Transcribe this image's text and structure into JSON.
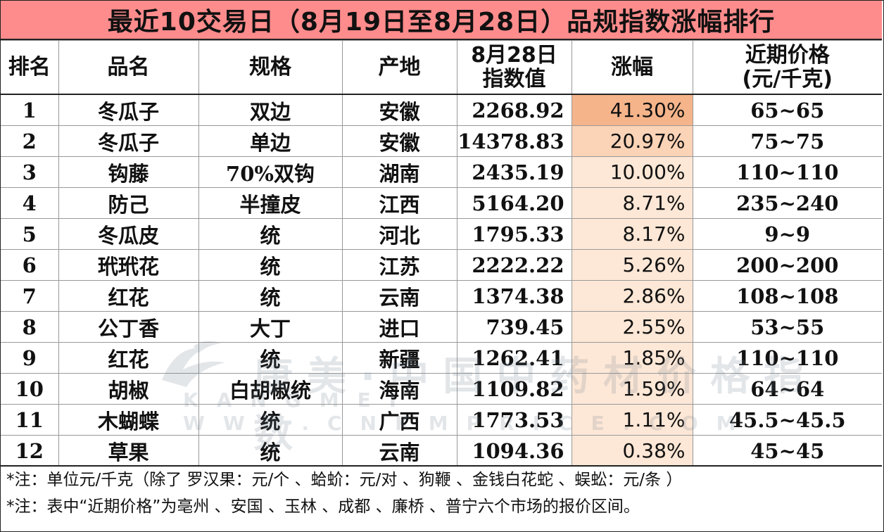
{
  "title": "最近10交易日（8月19日至8月28日）品规指数涨幅排行",
  "colors": {
    "title_bg": "#ff8c8c",
    "rise_high": "#f6b48a",
    "rise_mid": "#fbd3b6",
    "rise_low": "#fde7d6"
  },
  "headers": {
    "rank": "排名",
    "name": "品名",
    "spec": "规格",
    "origin": "产地",
    "index_line1": "8月28日",
    "index_line2": "指数值",
    "rise": "涨幅",
    "price_line1": "近期价格",
    "price_line2": "(元/千克)"
  },
  "rows": [
    {
      "rank": "1",
      "name": "冬瓜子",
      "spec": "双边",
      "origin": "安徽",
      "index": "2268.92",
      "rise": "41.30%",
      "price": "65~65",
      "rise_level": "high"
    },
    {
      "rank": "2",
      "name": "冬瓜子",
      "spec": "单边",
      "origin": "安徽",
      "index": "14378.83",
      "rise": "20.97%",
      "price": "75~75",
      "rise_level": "mid"
    },
    {
      "rank": "3",
      "name": "钩藤",
      "spec": "70%双钩",
      "origin": "湖南",
      "index": "2435.19",
      "rise": "10.00%",
      "price": "110~110",
      "rise_level": "low"
    },
    {
      "rank": "4",
      "name": "防己",
      "spec": "半撞皮",
      "origin": "江西",
      "index": "5164.20",
      "rise": "8.71%",
      "price": "235~240",
      "rise_level": "low"
    },
    {
      "rank": "5",
      "name": "冬瓜皮",
      "spec": "统",
      "origin": "河北",
      "index": "1795.33",
      "rise": "8.17%",
      "price": "9~9",
      "rise_level": "low"
    },
    {
      "rank": "6",
      "name": "玳玳花",
      "spec": "统",
      "origin": "江苏",
      "index": "2222.22",
      "rise": "5.26%",
      "price": "200~200",
      "rise_level": "low"
    },
    {
      "rank": "7",
      "name": "红花",
      "spec": "统",
      "origin": "云南",
      "index": "1374.38",
      "rise": "2.86%",
      "price": "108~108",
      "rise_level": "low"
    },
    {
      "rank": "8",
      "name": "公丁香",
      "spec": "大丁",
      "origin": "进口",
      "index": "739.45",
      "rise": "2.55%",
      "price": "53~55",
      "rise_level": "low"
    },
    {
      "rank": "9",
      "name": "红花",
      "spec": "统",
      "origin": "新疆",
      "index": "1262.41",
      "rise": "1.85%",
      "price": "110~110",
      "rise_level": "low"
    },
    {
      "rank": "10",
      "name": "胡椒",
      "spec": "白胡椒统",
      "origin": "海南",
      "index": "1109.82",
      "rise": "1.59%",
      "price": "64~64",
      "rise_level": "low"
    },
    {
      "rank": "11",
      "name": "木蝴蝶",
      "spec": "统",
      "origin": "广西",
      "index": "1773.53",
      "rise": "1.11%",
      "price": "45.5~45.5",
      "rise_level": "low"
    },
    {
      "rank": "12",
      "name": "草果",
      "spec": "统",
      "origin": "云南",
      "index": "1094.36",
      "rise": "0.38%",
      "price": "45~45",
      "rise_level": "low"
    }
  ],
  "notes": [
    "*注：单位元/千克（除了 罗汉果：元/个 、蛤蚧：元/对 、狗鞭 、金钱白花蛇 、蜈蚣：元/条 ）",
    "*注：表中“近期价格”为亳州 、安国 、玉林 、成都 、廉桥 、普宁六个市场的报价区间。"
  ],
  "watermark": {
    "main": "康美·中国中药材价格指数",
    "sub": "KANGMEI WWW.CNKMPRICE.COM"
  }
}
